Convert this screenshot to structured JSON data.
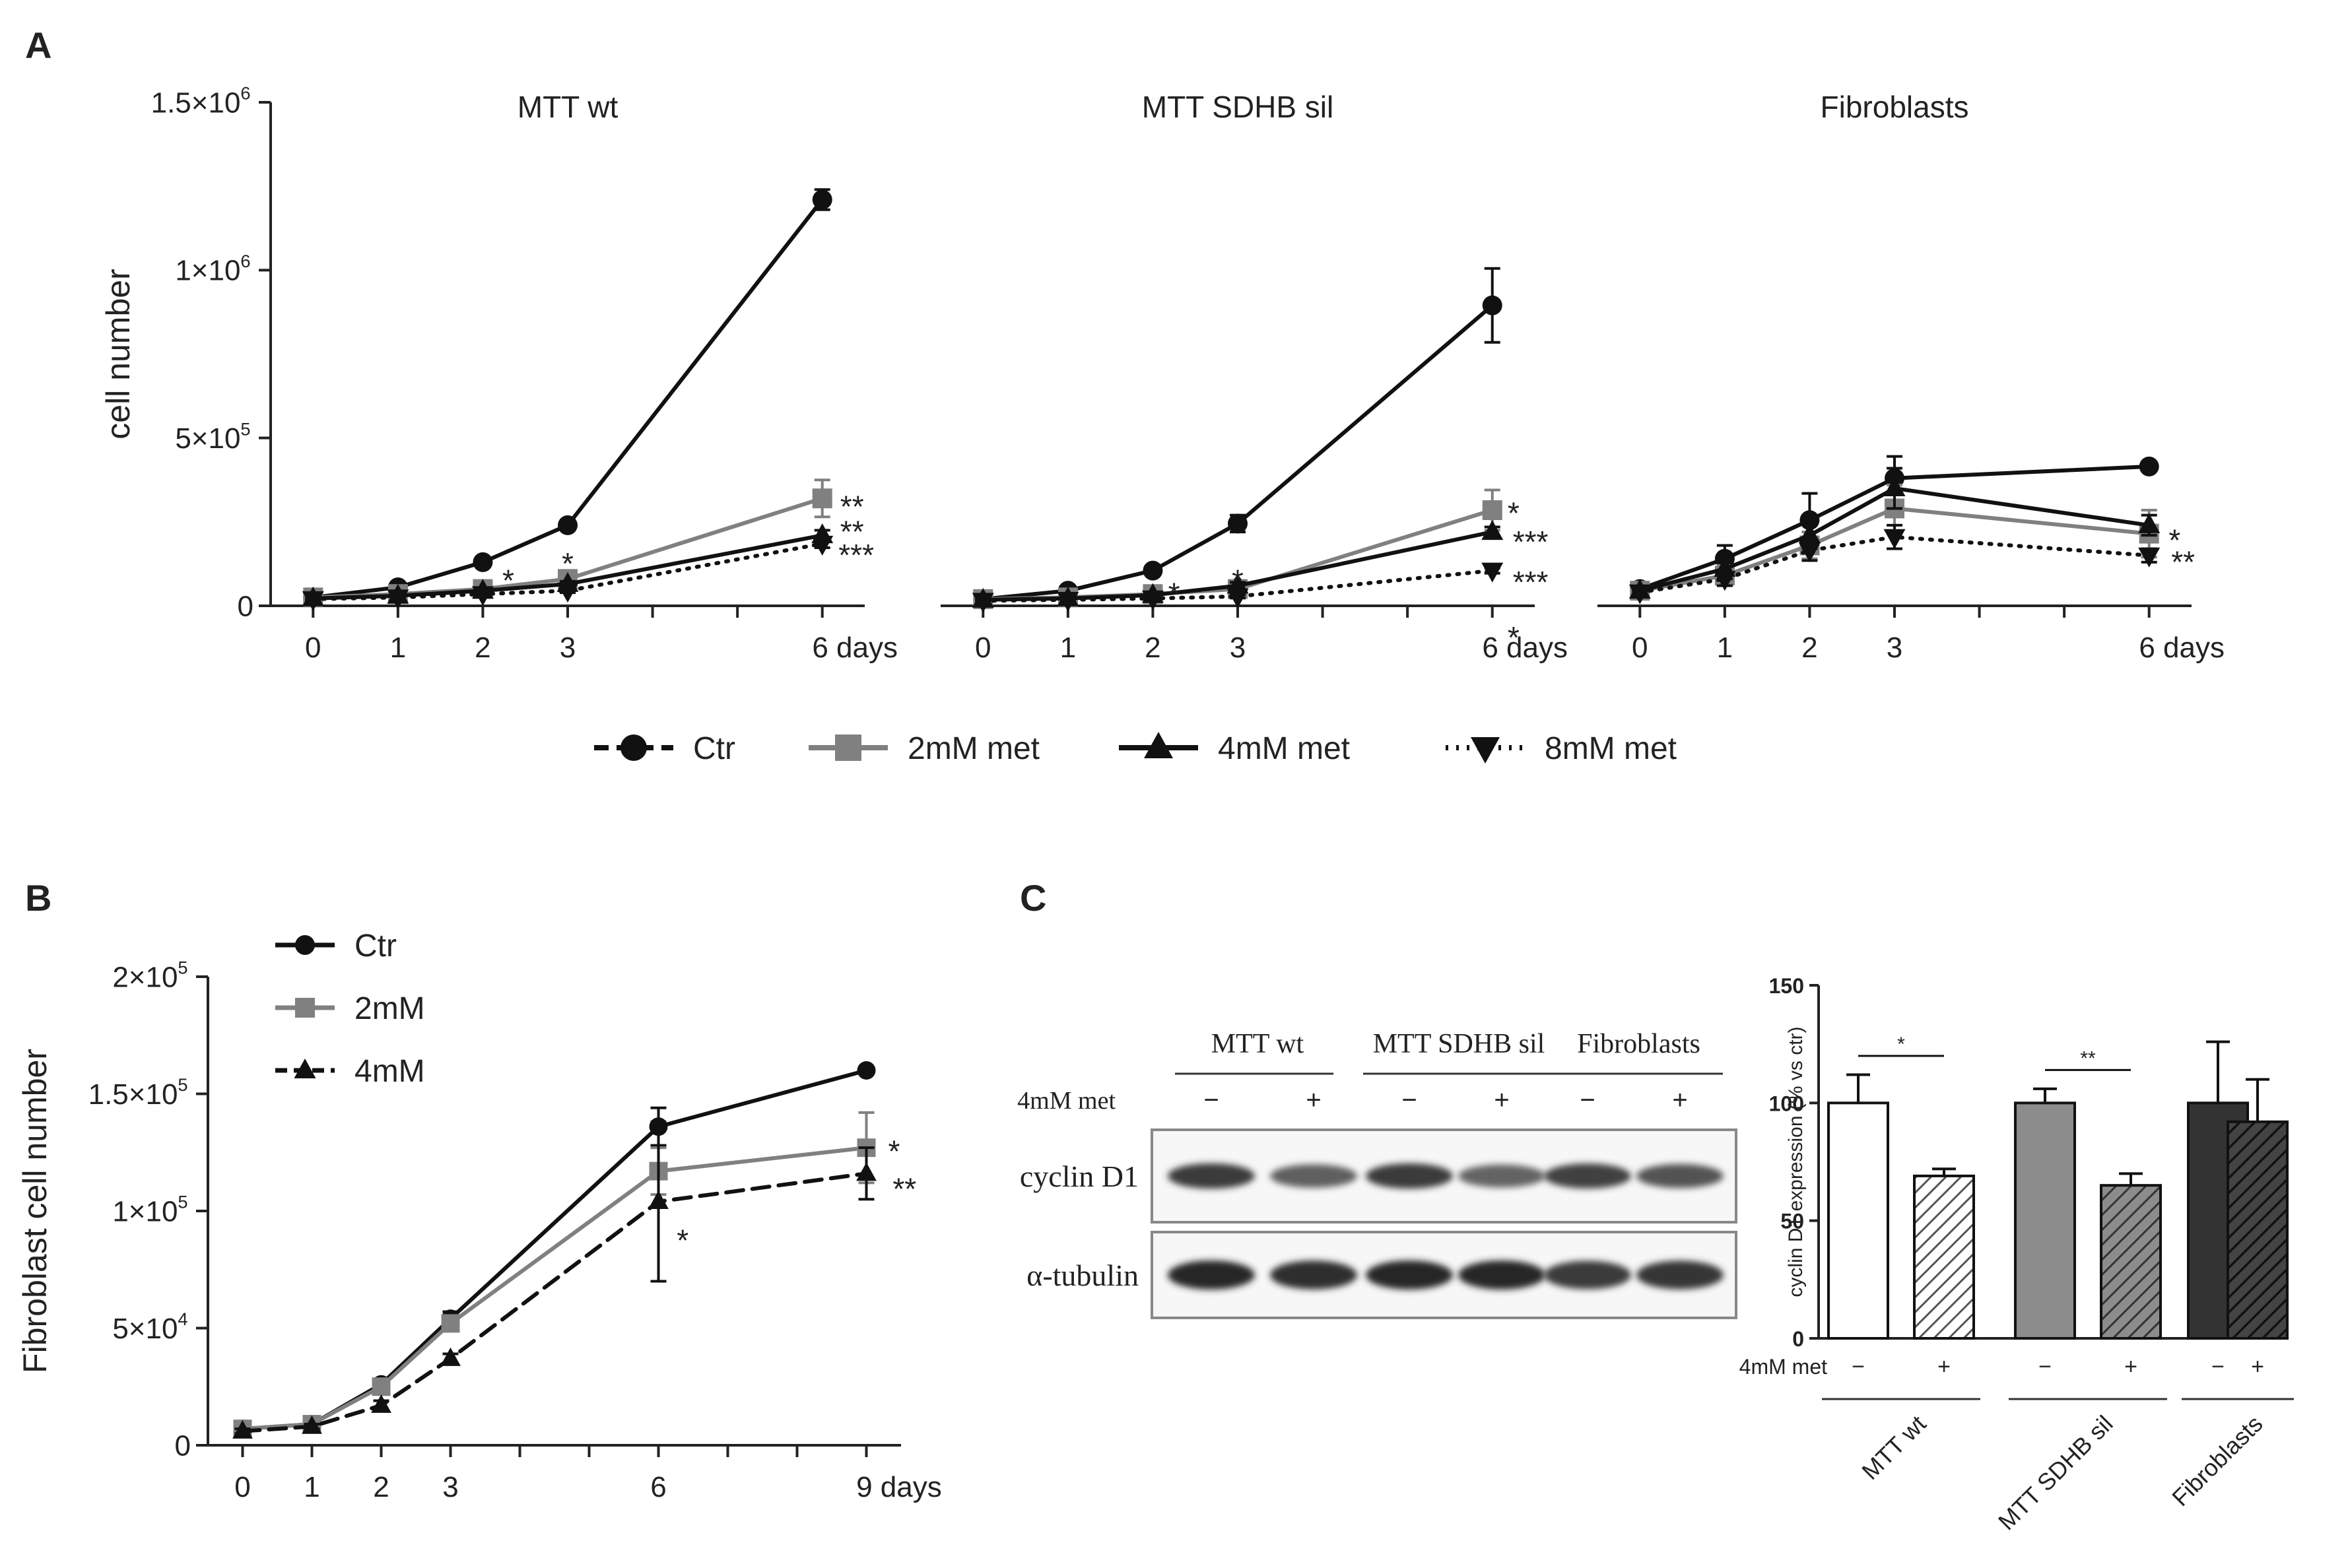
{
  "panel_labels": {
    "a": "A",
    "b": "B",
    "c": "C"
  },
  "colors": {
    "ctr": "#111111",
    "met2": "#808080",
    "met4": "#111111",
    "met8": "#111111",
    "bar_white": "#ffffff",
    "bar_grey": "#8c8c8c",
    "bar_dark": "#333333"
  },
  "legend_a": [
    "Ctr",
    "2mM met",
    "4mM met",
    "8mM met"
  ],
  "chart_data": [
    {
      "id": "a1",
      "type": "line",
      "title": "MTT wt",
      "xlabel": "",
      "ylabel": "cell number",
      "x": [
        0,
        1,
        2,
        3,
        6
      ],
      "x_tick_labels": [
        "0",
        "1",
        "2",
        "3",
        "6 days"
      ],
      "xlim": [
        -0.5,
        6.5
      ],
      "ylim": [
        0,
        1500000
      ],
      "y_ticks": [
        0,
        500000,
        1000000,
        1500000
      ],
      "y_tick_labels": [
        {
          "base": "0",
          "exp": ""
        },
        {
          "base": "5×10",
          "exp": "5"
        },
        {
          "base": "1×10",
          "exp": "6"
        },
        {
          "base": "1.5×10",
          "exp": "6"
        }
      ],
      "series": [
        {
          "name": "Ctr",
          "values": [
            25000,
            55000,
            130000,
            240000,
            1210000
          ],
          "errors": [
            8000,
            10000,
            10000,
            15000,
            30000
          ],
          "marker": "circle",
          "dash": "solid",
          "color": "#111111"
        },
        {
          "name": "2mM met",
          "values": [
            25000,
            35000,
            50000,
            80000,
            320000
          ],
          "errors": [
            5000,
            6000,
            8000,
            10000,
            55000
          ],
          "marker": "square",
          "dash": "solid",
          "color": "#808080"
        },
        {
          "name": "4mM met",
          "values": [
            22000,
            30000,
            45000,
            65000,
            210000
          ],
          "errors": [
            4000,
            5000,
            6000,
            8000,
            15000
          ],
          "marker": "triangle",
          "dash": "solid",
          "color": "#111111"
        },
        {
          "name": "8mM met",
          "values": [
            20000,
            25000,
            35000,
            45000,
            185000
          ],
          "errors": [
            3000,
            4000,
            5000,
            6000,
            12000
          ],
          "marker": "invtriangle",
          "dash": "dotted",
          "color": "#111111"
        }
      ],
      "annotations": [
        {
          "text": "*",
          "x": 2.3,
          "y": 80000
        },
        {
          "text": "*",
          "x": 3,
          "y": 130000
        },
        {
          "text": "**",
          "x": 6.35,
          "y": 300000
        },
        {
          "text": "**",
          "x": 6.35,
          "y": 225000
        },
        {
          "text": "***",
          "x": 6.4,
          "y": 155000
        }
      ]
    },
    {
      "id": "a2",
      "type": "line",
      "title": "MTT SDHB sil",
      "xlabel": "",
      "ylabel": "",
      "x": [
        0,
        1,
        2,
        3,
        6
      ],
      "x_tick_labels": [
        "0",
        "1",
        "2",
        "3",
        "6 days"
      ],
      "xlim": [
        -0.5,
        6.5
      ],
      "ylim": [
        0,
        1500000
      ],
      "series": [
        {
          "name": "Ctr",
          "values": [
            20000,
            45000,
            105000,
            245000,
            895000
          ],
          "errors": [
            6000,
            8000,
            10000,
            25000,
            110000
          ],
          "marker": "circle",
          "dash": "solid",
          "color": "#111111"
        },
        {
          "name": "2mM met",
          "values": [
            20000,
            25000,
            35000,
            50000,
            285000
          ],
          "errors": [
            4000,
            5000,
            6000,
            8000,
            60000
          ],
          "marker": "square",
          "dash": "solid",
          "color": "#808080"
        },
        {
          "name": "4mM met",
          "values": [
            18000,
            22000,
            32000,
            60000,
            220000
          ],
          "errors": [
            3000,
            4000,
            5000,
            10000,
            15000
          ],
          "marker": "triangle",
          "dash": "solid",
          "color": "#111111"
        },
        {
          "name": "8mM met",
          "values": [
            15000,
            18000,
            22000,
            28000,
            105000
          ],
          "errors": [
            3000,
            3000,
            4000,
            5000,
            8000
          ],
          "marker": "invtriangle",
          "dash": "dotted",
          "color": "#111111"
        }
      ],
      "annotations": [
        {
          "text": "*",
          "x": 2.25,
          "y": 40000
        },
        {
          "text": "*",
          "x": 3,
          "y": 80000
        },
        {
          "text": "*",
          "x": 6.25,
          "y": 280000
        },
        {
          "text": "***",
          "x": 6.45,
          "y": 195000
        },
        {
          "text": "***",
          "x": 6.45,
          "y": 75000
        },
        {
          "text": "*",
          "x": 6.25,
          "y": -90000
        }
      ]
    },
    {
      "id": "a3",
      "type": "line",
      "title": "Fibroblasts",
      "xlabel": "",
      "ylabel": "",
      "x": [
        0,
        1,
        2,
        3,
        6
      ],
      "x_tick_labels": [
        "0",
        "1",
        "2",
        "3",
        "6 days"
      ],
      "xlim": [
        -0.5,
        6.5
      ],
      "ylim": [
        0,
        1500000
      ],
      "series": [
        {
          "name": "Ctr",
          "values": [
            50000,
            140000,
            255000,
            380000,
            415000
          ],
          "errors": [
            8000,
            40000,
            80000,
            65000,
            12000
          ],
          "marker": "circle",
          "dash": "solid",
          "color": "#111111"
        },
        {
          "name": "2mM met",
          "values": [
            45000,
            90000,
            180000,
            290000,
            215000
          ],
          "errors": [
            8000,
            30000,
            40000,
            70000,
            70000
          ],
          "marker": "square",
          "dash": "solid",
          "color": "#808080"
        },
        {
          "name": "4mM met",
          "values": [
            45000,
            110000,
            210000,
            350000,
            240000
          ],
          "errors": [
            8000,
            30000,
            40000,
            60000,
            30000
          ],
          "marker": "triangle",
          "dash": "solid",
          "color": "#111111"
        },
        {
          "name": "8mM met",
          "values": [
            40000,
            80000,
            165000,
            205000,
            150000
          ],
          "errors": [
            5000,
            20000,
            30000,
            35000,
            20000
          ],
          "marker": "invtriangle",
          "dash": "dotted",
          "color": "#111111"
        }
      ],
      "annotations": [
        {
          "text": "*",
          "x": 6.3,
          "y": 200000
        },
        {
          "text": "**",
          "x": 6.4,
          "y": 135000
        }
      ]
    },
    {
      "id": "b",
      "type": "line",
      "title": "",
      "xlabel": "",
      "ylabel": "Fibroblast cell number",
      "x": [
        0,
        1,
        2,
        3,
        6,
        9
      ],
      "x_tick_labels": [
        "0",
        "1",
        "2",
        "3",
        "6",
        "9 days"
      ],
      "xlim": [
        -0.5,
        9.5
      ],
      "ylim": [
        0,
        200000
      ],
      "y_ticks": [
        0,
        50000,
        100000,
        150000,
        200000
      ],
      "y_tick_labels": [
        {
          "base": "0",
          "exp": ""
        },
        {
          "base": "5×10",
          "exp": "4"
        },
        {
          "base": "1×10",
          "exp": "5"
        },
        {
          "base": "1.5×10",
          "exp": "5"
        },
        {
          "base": "2×10",
          "exp": "5"
        }
      ],
      "legend": [
        "Ctr",
        "2mM",
        "4mM"
      ],
      "series": [
        {
          "name": "Ctr",
          "values": [
            7000,
            9000,
            26000,
            54000,
            136000,
            160000
          ],
          "errors": [
            1000,
            1000,
            2000,
            3000,
            8000,
            1500
          ],
          "marker": "circle",
          "dash": "solid",
          "color": "#111111"
        },
        {
          "name": "2mM",
          "values": [
            7000,
            9000,
            25000,
            52000,
            117000,
            127000
          ],
          "errors": [
            1000,
            1000,
            2000,
            3000,
            10000,
            15000
          ],
          "marker": "square",
          "dash": "solid",
          "color": "#808080"
        },
        {
          "name": "4mM",
          "values": [
            6000,
            8000,
            17000,
            37000,
            104000,
            116000
          ],
          "errors": [
            1000,
            1000,
            2000,
            2000,
            34000,
            11000
          ],
          "marker": "triangle",
          "dash": "dashed",
          "color": "#111111"
        }
      ],
      "annotations": [
        {
          "text": "*",
          "x": 6.35,
          "y": 88000
        },
        {
          "text": "*",
          "x": 9.4,
          "y": 126000
        },
        {
          "text": "**",
          "x": 9.55,
          "y": 110000
        }
      ]
    },
    {
      "id": "c_bar",
      "type": "bar",
      "title": "",
      "xlabel": "",
      "ylabel": "cyclin D1 expression (% vs ctr)",
      "ylim": [
        0,
        150
      ],
      "y_ticks": [
        0,
        50,
        100,
        150
      ],
      "row_label": "4mM met",
      "treatment_labels": [
        "−",
        "+",
        "−",
        "+",
        "−",
        "+"
      ],
      "groups": [
        "MTT wt",
        "MTT SDHB sil",
        "Fibroblasts"
      ],
      "values": [
        100,
        69,
        100,
        65,
        100,
        92
      ],
      "errors": [
        12,
        3,
        6,
        5,
        26,
        18
      ],
      "fills": [
        "white",
        "white-hatch",
        "grey",
        "grey-hatch",
        "dark",
        "dark-hatch"
      ],
      "significance": [
        {
          "pair": [
            0,
            1
          ],
          "text": "*"
        },
        {
          "pair": [
            2,
            3
          ],
          "text": "**"
        }
      ]
    }
  ],
  "blot": {
    "groups": [
      "MTT wt",
      "MTT SDHB sil",
      "Fibroblasts"
    ],
    "treatment_label": "4mM met",
    "treatment_marks": [
      "−",
      "+",
      "−",
      "+",
      "−",
      "+"
    ],
    "rows": [
      {
        "label": "cyclin D1",
        "intensities": [
          0.85,
          0.55,
          0.85,
          0.5,
          0.8,
          0.65
        ]
      },
      {
        "label": "α-tubulin",
        "intensities": [
          1.0,
          0.95,
          1.0,
          1.0,
          0.85,
          0.9
        ]
      }
    ]
  }
}
